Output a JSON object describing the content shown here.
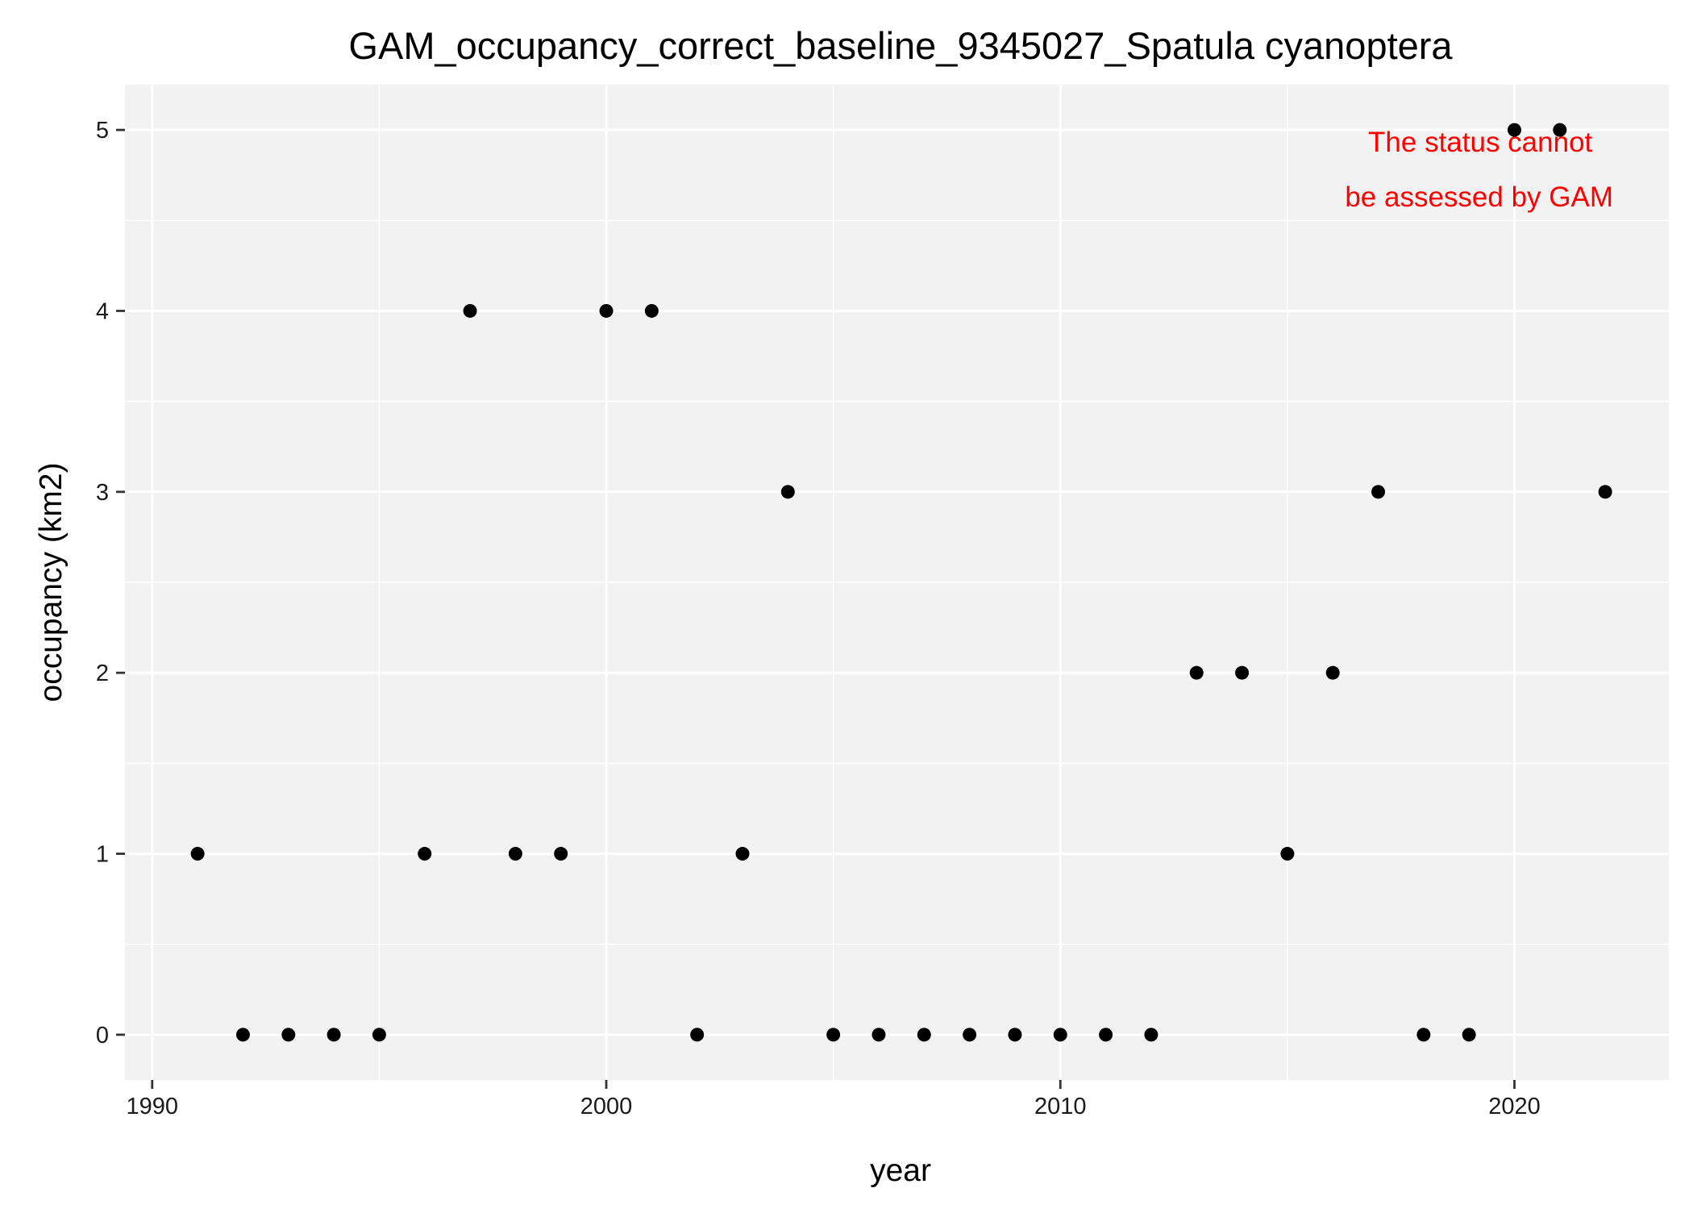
{
  "chart_data": {
    "type": "scatter",
    "title": "GAM_occupancy_correct_baseline_9345027_Spatula cyanoptera",
    "xlabel": "year",
    "ylabel": "occupancy (km2)",
    "xlim": [
      1989.4,
      2023.4
    ],
    "ylim": [
      -0.25,
      5.25
    ],
    "xticks": [
      1990,
      2000,
      2010,
      2020
    ],
    "yticks": [
      0,
      1,
      2,
      3,
      4,
      5
    ],
    "grid": true,
    "background_color": "#f2f2f2",
    "grid_color": "#ffffff",
    "point_color": "#000000",
    "annotation": {
      "lines": [
        "The status cannot",
        "be assessed by GAM"
      ],
      "color": "#ff0000"
    },
    "x": [
      1991,
      1992,
      1993,
      1994,
      1995,
      1996,
      1997,
      1998,
      1999,
      2000,
      2001,
      2002,
      2003,
      2004,
      2005,
      2006,
      2007,
      2008,
      2009,
      2010,
      2011,
      2012,
      2013,
      2014,
      2015,
      2016,
      2017,
      2018,
      2019,
      2020,
      2021,
      2022
    ],
    "y": [
      1,
      0,
      0,
      0,
      0,
      1,
      4,
      1,
      1,
      4,
      4,
      0,
      1,
      3,
      0,
      0,
      0,
      0,
      0,
      0,
      0,
      0,
      2,
      2,
      1,
      2,
      3,
      0,
      0,
      5,
      5,
      3
    ]
  }
}
